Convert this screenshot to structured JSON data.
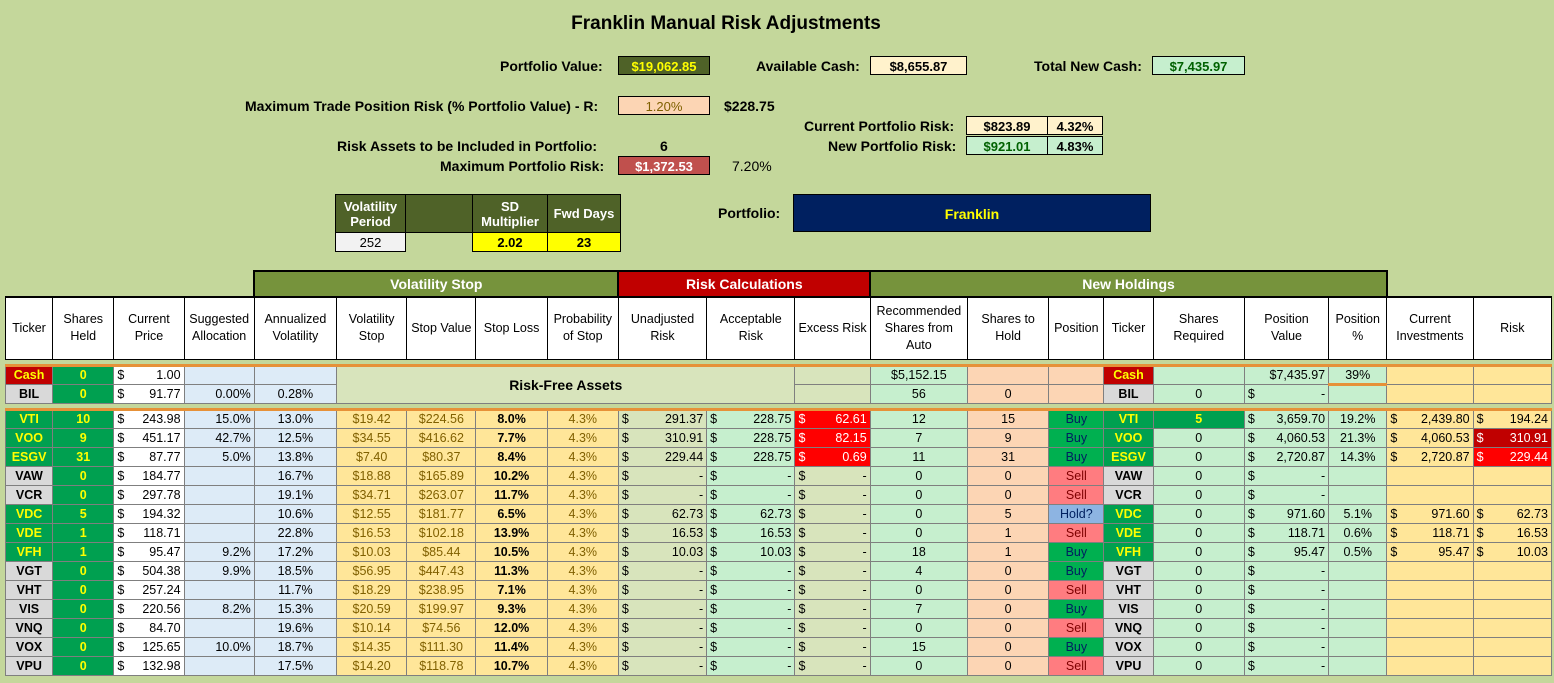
{
  "title": "Franklin Manual Risk Adjustments",
  "summary": {
    "portfolio_value_label": "Portfolio Value:",
    "portfolio_value": "$19,062.85",
    "available_cash_label": "Available Cash:",
    "available_cash": "$8,655.87",
    "total_new_cash_label": "Total New Cash:",
    "total_new_cash": "$7,435.97",
    "max_trade_label": "Maximum Trade Position Risk (% Portfolio Value) - R:",
    "max_trade_pct": "1.20%",
    "max_trade_amt": "$228.75",
    "risk_assets_label": "Risk Assets to be Included in Portfolio:",
    "risk_assets": "6",
    "max_portfolio_risk_label": "Maximum Portfolio Risk:",
    "max_portfolio_risk": "$1,372.53",
    "max_portfolio_risk_pct": "7.20%",
    "current_risk_label": "Current Portfolio Risk:",
    "current_risk": "$823.89",
    "current_risk_pct": "4.32%",
    "new_risk_label": "New Portfolio Risk:",
    "new_risk": "$921.01",
    "new_risk_pct": "4.83%",
    "portfolio_label": "Portfolio:",
    "portfolio_name": "Franklin"
  },
  "params": {
    "vol_period_label": "Volatility Period",
    "vol_period": "252",
    "sd_label": "SD Multiplier",
    "sd": "2.02",
    "fwd_label": "Fwd Days",
    "fwd": "23"
  },
  "groups": {
    "volatility_stop": "Volatility Stop",
    "risk_calc": "Risk Calculations",
    "new_holdings": "New Holdings"
  },
  "headers": [
    "Ticker",
    "Shares Held",
    "Current Price",
    "Suggested Allocation",
    "Annualized Volatility",
    "Volatility Stop",
    "Stop Value",
    "Stop Loss",
    "Probability of Stop",
    "Unadjusted Risk",
    "Acceptable Risk",
    "Excess Risk",
    "Recommended Shares from Auto",
    "Shares to Hold",
    "Position",
    "Ticker",
    "Shares Required",
    "Position Value",
    "Position %",
    "Current Investments",
    "Risk"
  ],
  "risk_free_label": "Risk-Free Assets",
  "cash_row": {
    "ticker": "Cash",
    "held": "0",
    "price": "1.00",
    "rec": "$5,152.15",
    "pos_value": "$7,435.97",
    "pos_pct": "39%"
  },
  "bil_row": {
    "ticker": "BIL",
    "held": "0",
    "price": "91.77",
    "alloc": "0.00%",
    "vol": "0.28%",
    "rec": "56",
    "hold": "0",
    "req": "0",
    "pos_value": "-"
  },
  "rows": [
    {
      "ticker": "VTI",
      "held": "10",
      "price": "243.98",
      "alloc": "15.0%",
      "vol": "13.0%",
      "vstop": "$19.42",
      "sval": "$224.56",
      "sloss": "8.0%",
      "prob": "4.3%",
      "unadj": "291.37",
      "acc": "228.75",
      "excess": "62.61",
      "rec": "12",
      "hold": "15",
      "pos": "Buy",
      "req": "5",
      "pval": "3,659.70",
      "ppct": "19.2%",
      "cur": "2,439.80",
      "risk": "194.24"
    },
    {
      "ticker": "VOO",
      "held": "9",
      "price": "451.17",
      "alloc": "42.7%",
      "vol": "12.5%",
      "vstop": "$34.55",
      "sval": "$416.62",
      "sloss": "7.7%",
      "prob": "4.3%",
      "unadj": "310.91",
      "acc": "228.75",
      "excess": "82.15",
      "rec": "7",
      "hold": "9",
      "pos": "Buy",
      "req": "0",
      "pval": "4,060.53",
      "ppct": "21.3%",
      "cur": "4,060.53",
      "risk": "310.91"
    },
    {
      "ticker": "ESGV",
      "held": "31",
      "price": "87.77",
      "alloc": "5.0%",
      "vol": "13.8%",
      "vstop": "$7.40",
      "sval": "$80.37",
      "sloss": "8.4%",
      "prob": "4.3%",
      "unadj": "229.44",
      "acc": "228.75",
      "excess": "0.69",
      "rec": "11",
      "hold": "31",
      "pos": "Buy",
      "req": "0",
      "pval": "2,720.87",
      "ppct": "14.3%",
      "cur": "2,720.87",
      "risk": "229.44"
    },
    {
      "ticker": "VAW",
      "held": "0",
      "price": "184.77",
      "alloc": "",
      "vol": "16.7%",
      "vstop": "$18.88",
      "sval": "$165.89",
      "sloss": "10.2%",
      "prob": "4.3%",
      "unadj": "-",
      "acc": "-",
      "excess": "-",
      "rec": "0",
      "hold": "0",
      "pos": "Sell",
      "req": "0",
      "pval": "-",
      "ppct": "",
      "cur": "",
      "risk": ""
    },
    {
      "ticker": "VCR",
      "held": "0",
      "price": "297.78",
      "alloc": "",
      "vol": "19.1%",
      "vstop": "$34.71",
      "sval": "$263.07",
      "sloss": "11.7%",
      "prob": "4.3%",
      "unadj": "-",
      "acc": "-",
      "excess": "-",
      "rec": "0",
      "hold": "0",
      "pos": "Sell",
      "req": "0",
      "pval": "-",
      "ppct": "",
      "cur": "",
      "risk": ""
    },
    {
      "ticker": "VDC",
      "held": "5",
      "price": "194.32",
      "alloc": "",
      "vol": "10.6%",
      "vstop": "$12.55",
      "sval": "$181.77",
      "sloss": "6.5%",
      "prob": "4.3%",
      "unadj": "62.73",
      "acc": "62.73",
      "excess": "-",
      "rec": "0",
      "hold": "5",
      "pos": "Hold?",
      "req": "0",
      "pval": "971.60",
      "ppct": "5.1%",
      "cur": "971.60",
      "risk": "62.73"
    },
    {
      "ticker": "VDE",
      "held": "1",
      "price": "118.71",
      "alloc": "",
      "vol": "22.8%",
      "vstop": "$16.53",
      "sval": "$102.18",
      "sloss": "13.9%",
      "prob": "4.3%",
      "unadj": "16.53",
      "acc": "16.53",
      "excess": "-",
      "rec": "0",
      "hold": "1",
      "pos": "Sell",
      "req": "0",
      "pval": "118.71",
      "ppct": "0.6%",
      "cur": "118.71",
      "risk": "16.53"
    },
    {
      "ticker": "VFH",
      "held": "1",
      "price": "95.47",
      "alloc": "9.2%",
      "vol": "17.2%",
      "vstop": "$10.03",
      "sval": "$85.44",
      "sloss": "10.5%",
      "prob": "4.3%",
      "unadj": "10.03",
      "acc": "10.03",
      "excess": "-",
      "rec": "18",
      "hold": "1",
      "pos": "Buy",
      "req": "0",
      "pval": "95.47",
      "ppct": "0.5%",
      "cur": "95.47",
      "risk": "10.03"
    },
    {
      "ticker": "VGT",
      "held": "0",
      "price": "504.38",
      "alloc": "9.9%",
      "vol": "18.5%",
      "vstop": "$56.95",
      "sval": "$447.43",
      "sloss": "11.3%",
      "prob": "4.3%",
      "unadj": "-",
      "acc": "-",
      "excess": "-",
      "rec": "4",
      "hold": "0",
      "pos": "Buy",
      "req": "0",
      "pval": "-",
      "ppct": "",
      "cur": "",
      "risk": ""
    },
    {
      "ticker": "VHT",
      "held": "0",
      "price": "257.24",
      "alloc": "",
      "vol": "11.7%",
      "vstop": "$18.29",
      "sval": "$238.95",
      "sloss": "7.1%",
      "prob": "4.3%",
      "unadj": "-",
      "acc": "-",
      "excess": "-",
      "rec": "0",
      "hold": "0",
      "pos": "Sell",
      "req": "0",
      "pval": "-",
      "ppct": "",
      "cur": "",
      "risk": ""
    },
    {
      "ticker": "VIS",
      "held": "0",
      "price": "220.56",
      "alloc": "8.2%",
      "vol": "15.3%",
      "vstop": "$20.59",
      "sval": "$199.97",
      "sloss": "9.3%",
      "prob": "4.3%",
      "unadj": "-",
      "acc": "-",
      "excess": "-",
      "rec": "7",
      "hold": "0",
      "pos": "Buy",
      "req": "0",
      "pval": "-",
      "ppct": "",
      "cur": "",
      "risk": ""
    },
    {
      "ticker": "VNQ",
      "held": "0",
      "price": "84.70",
      "alloc": "",
      "vol": "19.6%",
      "vstop": "$10.14",
      "sval": "$74.56",
      "sloss": "12.0%",
      "prob": "4.3%",
      "unadj": "-",
      "acc": "-",
      "excess": "-",
      "rec": "0",
      "hold": "0",
      "pos": "Sell",
      "req": "0",
      "pval": "-",
      "ppct": "",
      "cur": "",
      "risk": ""
    },
    {
      "ticker": "VOX",
      "held": "0",
      "price": "125.65",
      "alloc": "10.0%",
      "vol": "18.7%",
      "vstop": "$14.35",
      "sval": "$111.30",
      "sloss": "11.4%",
      "prob": "4.3%",
      "unadj": "-",
      "acc": "-",
      "excess": "-",
      "rec": "15",
      "hold": "0",
      "pos": "Buy",
      "req": "0",
      "pval": "-",
      "ppct": "",
      "cur": "",
      "risk": ""
    },
    {
      "ticker": "VPU",
      "held": "0",
      "price": "132.98",
      "alloc": "",
      "vol": "17.5%",
      "vstop": "$14.20",
      "sval": "$118.78",
      "sloss": "10.7%",
      "prob": "4.3%",
      "unadj": "-",
      "acc": "-",
      "excess": "-",
      "rec": "0",
      "hold": "0",
      "pos": "Sell",
      "req": "0",
      "pval": "-",
      "ppct": "",
      "cur": "",
      "risk": ""
    }
  ]
}
